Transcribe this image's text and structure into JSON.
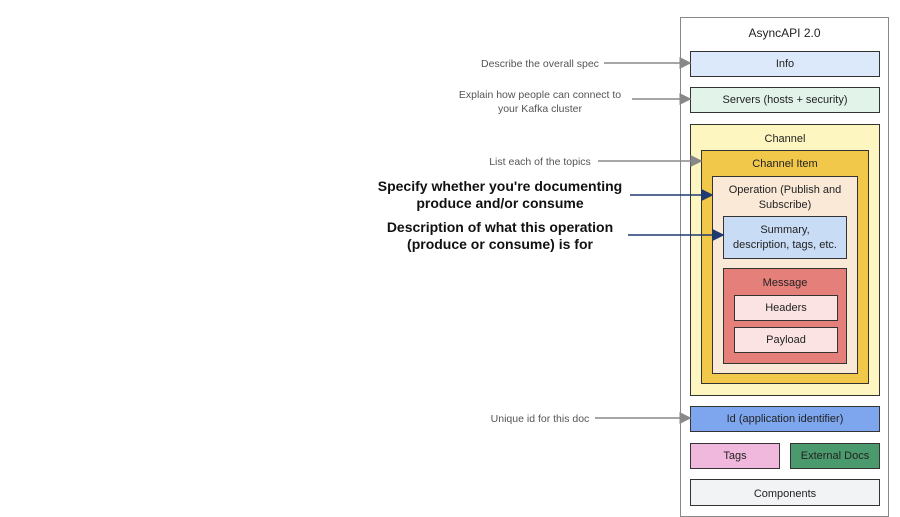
{
  "spec": {
    "title": "AsyncAPI 2.0",
    "info": "Info",
    "servers": "Servers (hosts + security)",
    "channel": "Channel",
    "channel_item": "Channel Item",
    "operation": "Operation (Publish and Subscribe)",
    "summary": "Summary, description, tags, etc.",
    "message": "Message",
    "headers": "Headers",
    "payload": "Payload",
    "id": "Id (application identifier)",
    "tags": "Tags",
    "external_docs": "External Docs",
    "components": "Components"
  },
  "annotations": {
    "describe_spec": "Describe the overall spec",
    "servers_line1": "Explain how people can connect to",
    "servers_line2": "your Kafka cluster",
    "topics": "List each of the topics",
    "operation_line1": "Specify whether you're documenting",
    "operation_line2": "produce and/or consume",
    "description_line1": "Description of what this operation",
    "description_line2": "(produce or consume) is for",
    "unique_id": "Unique id for this doc"
  },
  "colors": {
    "info": "#dce9fb",
    "servers": "#e2f3ea",
    "channel": "#fdf6c0",
    "channel_item": "#f2c84b",
    "operation": "#fbe9d8",
    "summary": "#c9dcf6",
    "message": "#e57f7a",
    "message_inner": "#fbe3e3",
    "id": "#7ea6ef",
    "tags": "#f0b8dc",
    "external_docs": "#4b9a6d",
    "components": "#f2f3f5",
    "arrow_gray": "#888888",
    "arrow_navy": "#1f3a73"
  }
}
